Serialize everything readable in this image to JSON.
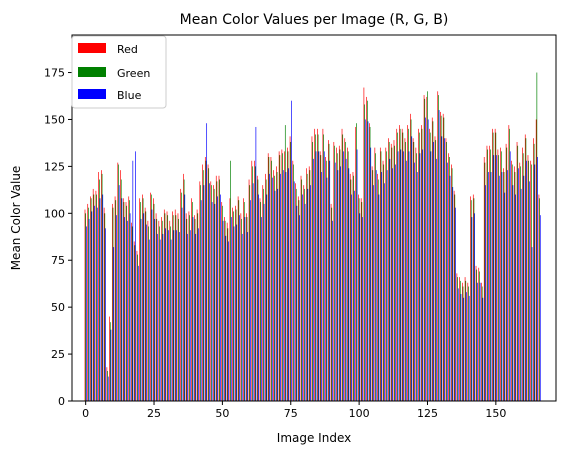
{
  "chart_data": {
    "type": "bar",
    "title": "Mean Color Values per Image (R, G, B)",
    "xlabel": "Image Index",
    "ylabel": "Mean Color Value",
    "xlim": [
      -5,
      172
    ],
    "ylim": [
      0,
      195
    ],
    "x_ticks": [
      0,
      25,
      50,
      75,
      100,
      125,
      150
    ],
    "y_ticks": [
      0,
      25,
      50,
      75,
      100,
      125,
      150,
      175
    ],
    "grid": false,
    "legend_position": "upper-left",
    "x": [
      0,
      1,
      2,
      3,
      4,
      5,
      6,
      7,
      8,
      9,
      10,
      11,
      12,
      13,
      14,
      15,
      16,
      17,
      18,
      19,
      20,
      21,
      22,
      23,
      24,
      25,
      26,
      27,
      28,
      29,
      30,
      31,
      32,
      33,
      34,
      35,
      36,
      37,
      38,
      39,
      40,
      41,
      42,
      43,
      44,
      45,
      46,
      47,
      48,
      49,
      50,
      51,
      52,
      53,
      54,
      55,
      56,
      57,
      58,
      59,
      60,
      61,
      62,
      63,
      64,
      65,
      66,
      67,
      68,
      69,
      70,
      71,
      72,
      73,
      74,
      75,
      76,
      77,
      78,
      79,
      80,
      81,
      82,
      83,
      84,
      85,
      86,
      87,
      88,
      89,
      90,
      91,
      92,
      93,
      94,
      95,
      96,
      97,
      98,
      99,
      100,
      101,
      102,
      103,
      104,
      105,
      106,
      107,
      108,
      109,
      110,
      111,
      112,
      113,
      114,
      115,
      116,
      117,
      118,
      119,
      120,
      121,
      122,
      123,
      124,
      125,
      126,
      127,
      128,
      129,
      130,
      131,
      132,
      133,
      134,
      135,
      136,
      137,
      138,
      139,
      140,
      141,
      142,
      143,
      144,
      145,
      146,
      147,
      148,
      149,
      150,
      151,
      152,
      153,
      154,
      155,
      156,
      157,
      158,
      159,
      160,
      161,
      162,
      163,
      164,
      165,
      166
    ],
    "series": [
      {
        "name": "Red",
        "color": "#ff0000",
        "values": [
          102,
          105,
          109,
          113,
          112,
          122,
          123,
          103,
          18,
          45,
          105,
          109,
          127,
          123,
          108,
          106,
          109,
          95,
          85,
          80,
          108,
          110,
          103,
          96,
          111,
          108,
          100,
          96,
          98,
          102,
          101,
          96,
          101,
          102,
          100,
          113,
          121,
          100,
          101,
          108,
          99,
          102,
          117,
          126,
          130,
          126,
          117,
          115,
          120,
          120,
          106,
          98,
          95,
          108,
          103,
          104,
          109,
          100,
          108,
          100,
          118,
          128,
          128,
          120,
          108,
          115,
          121,
          132,
          130,
          123,
          125,
          133,
          134,
          133,
          135,
          141,
          128,
          116,
          109,
          120,
          115,
          124,
          125,
          141,
          145,
          145,
          133,
          145,
          130,
          139,
          105,
          138,
          135,
          136,
          145,
          140,
          135,
          121,
          122,
          146,
          110,
          108,
          167,
          162,
          148,
          125,
          135,
          121,
          135,
          128,
          135,
          140,
          137,
          139,
          145,
          147,
          145,
          140,
          147,
          153,
          140,
          135,
          145,
          147,
          163,
          162,
          145,
          151,
          141,
          165,
          154,
          153,
          140,
          132,
          126,
          112,
          68,
          66,
          63,
          66,
          63,
          109,
          110,
          72,
          71,
          63,
          130,
          136,
          136,
          145,
          145,
          134,
          135,
          124,
          137,
          147,
          128,
          125,
          138,
          127,
          135,
          142,
          131,
          128,
          140,
          150,
          110
        ]
      },
      {
        "name": "Green",
        "color": "#008000",
        "values": [
          100,
          103,
          108,
          110,
          110,
          118,
          121,
          100,
          16,
          42,
          103,
          107,
          126,
          118,
          106,
          104,
          107,
          93,
          83,
          78,
          106,
          108,
          101,
          93,
          110,
          105,
          97,
          93,
          96,
          100,
          99,
          93,
          99,
          99,
          97,
          111,
          118,
          97,
          99,
          106,
          97,
          100,
          115,
          123,
          128,
          124,
          115,
          113,
          117,
          118,
          104,
          96,
          92,
          128,
          101,
          102,
          107,
          97,
          106,
          98,
          115,
          125,
          125,
          118,
          106,
          113,
          118,
          130,
          128,
          120,
          122,
          131,
          132,
          147,
          133,
          138,
          126,
          113,
          107,
          118,
          113,
          121,
          123,
          138,
          142,
          142,
          131,
          142,
          128,
          137,
          103,
          136,
          132,
          134,
          142,
          138,
          133,
          118,
          120,
          148,
          108,
          106,
          158,
          160,
          146,
          123,
          132,
          118,
          133,
          126,
          133,
          138,
          135,
          136,
          143,
          145,
          143,
          138,
          145,
          150,
          138,
          132,
          143,
          145,
          161,
          165,
          143,
          149,
          139,
          163,
          152,
          151,
          138,
          130,
          124,
          110,
          66,
          64,
          61,
          64,
          61,
          107,
          108,
          70,
          69,
          61,
          127,
          134,
          134,
          143,
          143,
          131,
          133,
          122,
          135,
          145,
          126,
          122,
          136,
          125,
          132,
          140,
          128,
          126,
          137,
          175,
          108
        ]
      },
      {
        "name": "Blue",
        "color": "#0000ff",
        "values": [
          93,
          97,
          101,
          104,
          103,
          108,
          110,
          92,
          13,
          38,
          82,
          99,
          115,
          108,
          98,
          96,
          100,
          128,
          133,
          72,
          97,
          100,
          94,
          86,
          102,
          97,
          89,
          86,
          89,
          92,
          91,
          86,
          91,
          91,
          90,
          103,
          110,
          89,
          91,
          98,
          89,
          92,
          107,
          115,
          148,
          116,
          106,
          105,
          109,
          110,
          96,
          88,
          85,
          98,
          93,
          94,
          99,
          89,
          98,
          90,
          107,
          116,
          146,
          110,
          98,
          105,
          110,
          121,
          119,
          112,
          113,
          121,
          123,
          122,
          124,
          160,
          117,
          104,
          99,
          110,
          105,
          113,
          115,
          129,
          133,
          133,
          122,
          133,
          119,
          128,
          96,
          127,
          123,
          125,
          133,
          129,
          124,
          110,
          112,
          134,
          100,
          98,
          150,
          149,
          135,
          115,
          123,
          110,
          122,
          116,
          123,
          129,
          124,
          126,
          133,
          134,
          133,
          128,
          133,
          141,
          127,
          122,
          132,
          134,
          151,
          150,
          133,
          138,
          129,
          155,
          141,
          140,
          127,
          120,
          114,
          103,
          60,
          57,
          55,
          58,
          56,
          98,
          100,
          63,
          63,
          55,
          115,
          122,
          122,
          131,
          131,
          120,
          122,
          111,
          123,
          133,
          115,
          110,
          124,
          113,
          120,
          128,
          117,
          82,
          126,
          130,
          99
        ]
      }
    ]
  }
}
